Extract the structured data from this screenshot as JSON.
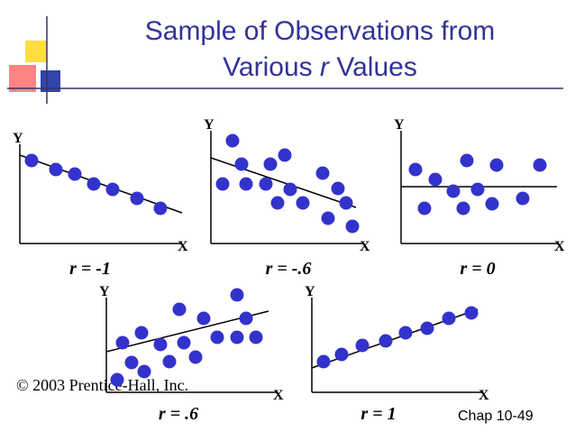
{
  "slide": {
    "title": [
      "Sample of Observations from",
      "Various",
      "r",
      "Values"
    ],
    "copyright": "© 2003 Prentice-Hall, Inc.",
    "page": "Chap 10-49"
  },
  "chart_data": [
    {
      "type": "scatter",
      "label": "r = -1",
      "xlabel": "X",
      "ylabel": "Y",
      "color": "#3333cc",
      "xlim": [
        0,
        180
      ],
      "ylim": [
        0,
        110
      ],
      "x": [
        13,
        40,
        61,
        82,
        103,
        130,
        156
      ],
      "values": [
        92,
        82,
        77,
        66,
        60,
        50,
        39
      ],
      "trend": {
        "x": [
          0,
          180
        ],
        "y": [
          98,
          34
        ]
      }
    },
    {
      "type": "scatter",
      "label": "r = -.6",
      "xlabel": "X",
      "ylabel": "Y",
      "color": "#3333cc",
      "xlim": [
        0,
        170
      ],
      "ylim": [
        0,
        125
      ],
      "x": [
        24,
        34,
        66,
        82,
        13,
        39,
        61,
        88,
        124,
        141,
        150,
        74,
        102,
        130,
        157
      ],
      "values": [
        114,
        88,
        88,
        98,
        66,
        66,
        66,
        60,
        78,
        61,
        45,
        45,
        45,
        28,
        19
      ],
      "trend": {
        "x": [
          0,
          161
        ],
        "y": [
          95,
          40
        ]
      }
    },
    {
      "type": "scatter",
      "label": "r = 0",
      "xlabel": "X",
      "ylabel": "Y",
      "color": "#3333cc",
      "xlim": [
        0,
        175
      ],
      "ylim": [
        0,
        125
      ],
      "x": [
        16,
        38,
        73,
        106,
        154,
        58,
        85,
        135,
        26,
        69,
        101
      ],
      "values": [
        82,
        71,
        92,
        87,
        87,
        58,
        60,
        50,
        39,
        39,
        44
      ],
      "trend": {
        "x": [
          0,
          173
        ],
        "y": [
          63,
          63
        ]
      }
    },
    {
      "type": "scatter",
      "label": "r = .6",
      "xlabel": "X",
      "ylabel": "Y",
      "color": "#3333cc",
      "xlim": [
        0,
        190
      ],
      "ylim": [
        0,
        105
      ],
      "x": [
        145,
        81,
        108,
        155,
        18,
        39,
        60,
        86,
        123,
        145,
        166,
        28,
        70,
        99,
        12,
        42
      ],
      "values": [
        108,
        92,
        82,
        82,
        55,
        66,
        53,
        55,
        61,
        61,
        61,
        33,
        34,
        39,
        14,
        23
      ],
      "trend": {
        "x": [
          0,
          180
        ],
        "y": [
          45,
          90
        ]
      }
    },
    {
      "type": "scatter",
      "label": "r = 1",
      "xlabel": "X",
      "ylabel": "Y",
      "color": "#3333cc",
      "xlim": [
        0,
        190
      ],
      "ylim": [
        0,
        105
      ],
      "x": [
        13,
        33,
        56,
        82,
        104,
        128,
        152,
        177
      ],
      "values": [
        34,
        42,
        52,
        57,
        66,
        71,
        82,
        88
      ],
      "trend": {
        "x": [
          0,
          184
        ],
        "y": [
          27,
          92
        ]
      }
    }
  ]
}
